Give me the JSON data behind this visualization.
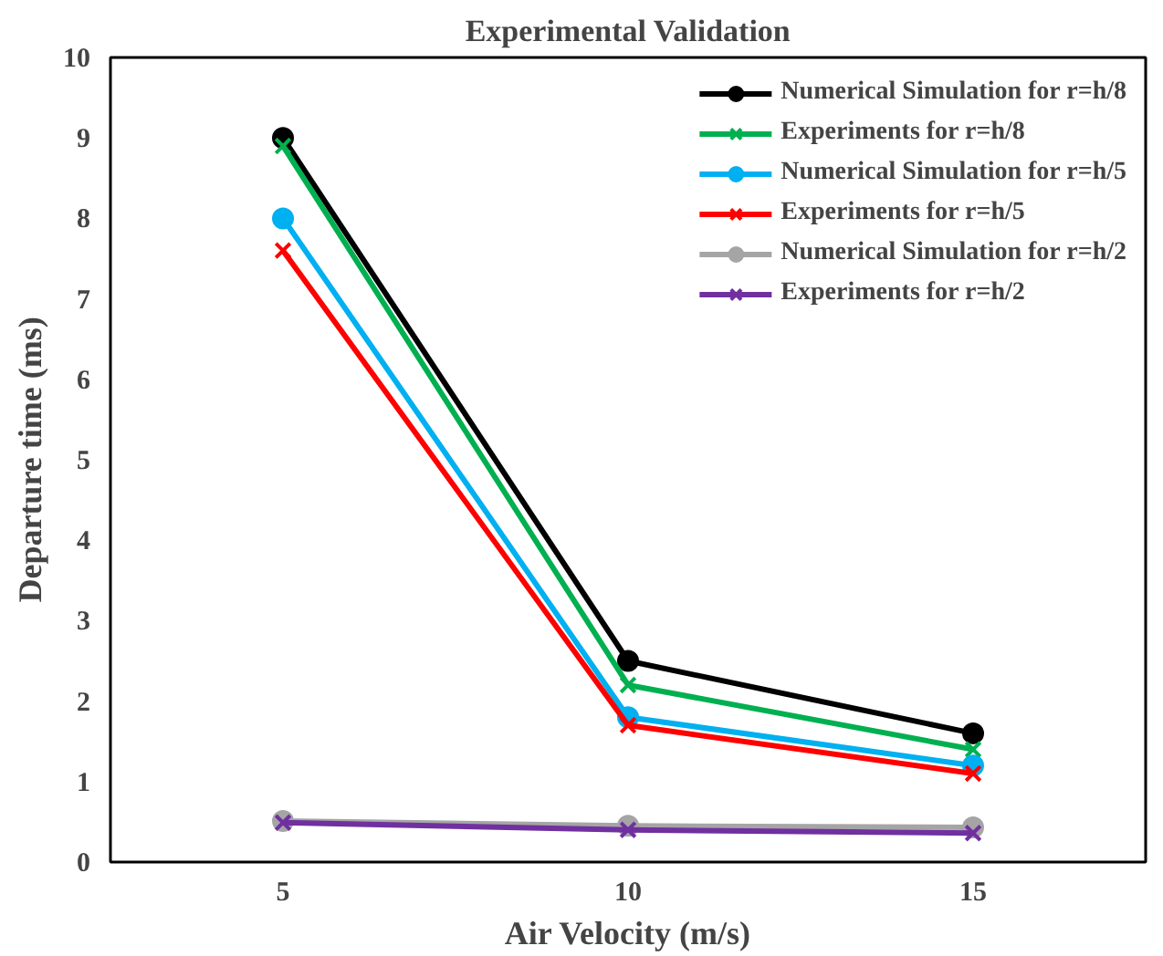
{
  "chart_data": {
    "type": "line",
    "title": "Experimental Validation",
    "xlabel": "Air Velocity (m/s)",
    "ylabel": "Departure time (ms)",
    "x": [
      5,
      10,
      15
    ],
    "xlim": [
      2.5,
      17.5
    ],
    "xticks": [
      5,
      10,
      15
    ],
    "ylim": [
      0,
      10
    ],
    "yticks": [
      0,
      1,
      2,
      3,
      4,
      5,
      6,
      7,
      8,
      9,
      10
    ],
    "grid": false,
    "legend": "top right",
    "line_style": "solid",
    "series": [
      {
        "name": "Numerical Simulation for r=h/8",
        "color": "#000000",
        "marker": "circle",
        "values": [
          9.0,
          2.5,
          1.6
        ]
      },
      {
        "name": "Experiments for r=h/8",
        "color": "#00b050",
        "marker": "cross",
        "values": [
          8.9,
          2.2,
          1.4
        ]
      },
      {
        "name": "Numerical Simulation for r=h/5",
        "color": "#00b0f0",
        "marker": "circle",
        "values": [
          8.0,
          1.8,
          1.2
        ]
      },
      {
        "name": "Experiments for r=h/5",
        "color": "#ff0000",
        "marker": "cross",
        "values": [
          7.6,
          1.7,
          1.1
        ]
      },
      {
        "name": "Numerical Simulation for r=h/2",
        "color": "#a5a5a5",
        "marker": "circle",
        "values": [
          0.51,
          0.45,
          0.43
        ]
      },
      {
        "name": "Experiments for r=h/2",
        "color": "#7030a0",
        "marker": "cross",
        "values": [
          0.49,
          0.4,
          0.36
        ]
      }
    ]
  }
}
